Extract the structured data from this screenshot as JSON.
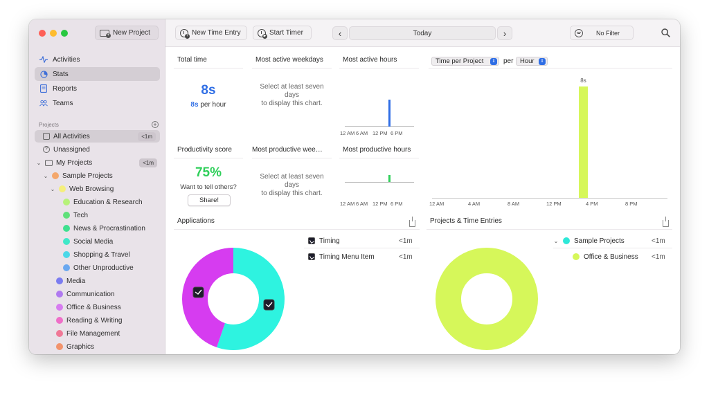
{
  "sidebar": {
    "new_project_label": "New Project",
    "nav": [
      {
        "label": "Activities",
        "icon": "activity-icon"
      },
      {
        "label": "Stats",
        "icon": "stats-icon"
      },
      {
        "label": "Reports",
        "icon": "reports-icon"
      },
      {
        "label": "Teams",
        "icon": "teams-icon"
      }
    ],
    "projects_header": "Projects",
    "tree": [
      {
        "label": "All Activities",
        "badge": "<1m",
        "icon": "tray-icon",
        "depth": 0
      },
      {
        "label": "Unassigned",
        "icon": "question-icon",
        "depth": 0
      },
      {
        "label": "My Projects",
        "badge": "<1m",
        "icon": "folder-icon",
        "depth": 0,
        "chevron": "v"
      },
      {
        "label": "Sample Projects",
        "color": "#f4a76b",
        "depth": 1,
        "chevron": "v"
      },
      {
        "label": "Web Browsing",
        "color": "#f5ef7c",
        "depth": 2,
        "chevron": "v"
      },
      {
        "label": "Education & Research",
        "color": "#b7f27a",
        "depth": 3
      },
      {
        "label": "Tech",
        "color": "#5fe07a",
        "depth": 3
      },
      {
        "label": "News & Procrastination",
        "color": "#3ee08f",
        "depth": 3
      },
      {
        "label": "Social Media",
        "color": "#3fe8c8",
        "depth": 3
      },
      {
        "label": "Shopping & Travel",
        "color": "#4ad8e8",
        "depth": 3
      },
      {
        "label": "Other Unproductive",
        "color": "#6aa8f0",
        "depth": 3
      },
      {
        "label": "Media",
        "color": "#7b7cf0",
        "depth": 2
      },
      {
        "label": "Communication",
        "color": "#b07af0",
        "depth": 2
      },
      {
        "label": "Office & Business",
        "color": "#d77cf0",
        "depth": 2
      },
      {
        "label": "Reading & Writing",
        "color": "#ef6fc8",
        "depth": 2
      },
      {
        "label": "File Management",
        "color": "#f07896",
        "depth": 2
      },
      {
        "label": "Graphics",
        "color": "#f2936c",
        "depth": 2
      }
    ]
  },
  "toolbar": {
    "new_time_entry": "New Time Entry",
    "start_timer": "Start Timer",
    "date_label": "Today",
    "filter_label": "No Filter"
  },
  "panels": {
    "total_time": {
      "title": "Total time",
      "value": "8s",
      "per_hour_value": "8s",
      "per_hour_suffix": "per hour"
    },
    "most_active_weekdays": {
      "title": "Most active weekdays",
      "message": [
        "Select at least seven",
        "days",
        "to display this chart."
      ]
    },
    "most_active_hours": {
      "title": "Most active hours",
      "axis": [
        "12 AM",
        "6 AM",
        "12 PM",
        "6 PM"
      ]
    },
    "productivity": {
      "title": "Productivity score",
      "value": "75%",
      "prompt": "Want to tell others?",
      "share": "Share!"
    },
    "most_productive_weekdays": {
      "title": "Most productive wee…",
      "message": [
        "Select at least seven",
        "days",
        "to display this chart."
      ]
    },
    "most_productive_hours": {
      "title": "Most productive hours",
      "axis": [
        "12 AM",
        "6 AM",
        "12 PM",
        "6 PM"
      ]
    },
    "time_chart": {
      "select_metric": "Time per Project",
      "per_label": "per",
      "select_unit": "Hour",
      "bar_label": "8s",
      "axis": [
        "12 AM",
        "4 AM",
        "8 AM",
        "12 PM",
        "4 PM",
        "8 PM"
      ]
    },
    "applications": {
      "title": "Applications",
      "items": [
        {
          "label": "Timing",
          "duration": "<1m"
        },
        {
          "label": "Timing Menu Item",
          "duration": "<1m"
        }
      ]
    },
    "projects_entries": {
      "title": "Projects & Time Entries",
      "items": [
        {
          "label": "Sample Projects",
          "duration": "<1m",
          "color": "#2ee8d8"
        },
        {
          "label": "Office & Business",
          "duration": "<1m",
          "color": "#d6f75a"
        }
      ]
    }
  },
  "colors": {
    "accent_blue": "#2f6ee5",
    "green": "#2fcf5a",
    "magenta": "#d63cf0",
    "cyan": "#2ef3e0",
    "lime": "#d6f75a"
  }
}
